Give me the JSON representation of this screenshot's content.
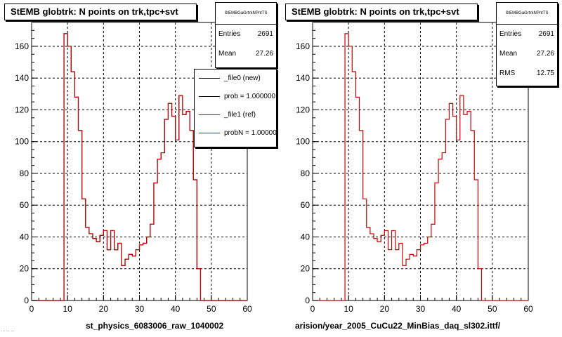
{
  "footer_text": "...  ...  ...",
  "panels": [
    {
      "title": "StEMB globtrk: N points on trk,tpc+svt",
      "stats_header": "StEMBGaGrtrkNPntTS",
      "stats": [
        {
          "label": "Entries",
          "value": "2691"
        },
        {
          "label": "Mean",
          "value": "27.26"
        }
      ],
      "xtitle": "st_physics_6083006_raw_1040002",
      "legend": [
        {
          "label": "_file0 (new)",
          "color": "#000000"
        },
        {
          "label": "prob = 1.000000",
          "color": "#000000"
        },
        {
          "label": "_file1 (ref)",
          "color": "#cc0000"
        },
        {
          "label": "probN = 1.000000",
          "color": "#cc0000"
        }
      ]
    },
    {
      "title": "StEMB globtrk: N points on trk,tpc+svt",
      "stats_header": "StEMBGaGrtrkNPntTS",
      "stats": [
        {
          "label": "Entries",
          "value": "2691"
        },
        {
          "label": "Mean",
          "value": "27.26"
        },
        {
          "label": "RMS",
          "value": "12.75"
        }
      ],
      "xtitle": "arision/year_2005_CuCu22_MinBias_daq_sl302.ittf/",
      "legend": []
    }
  ],
  "chart_data": [
    {
      "type": "bar",
      "title": "StEMB globtrk: N points on trk,tpc+svt",
      "xlabel": "st_physics_6083006_raw_1040002",
      "ylabel": "",
      "xlim": [
        0,
        60
      ],
      "ylim": [
        0,
        175
      ],
      "xticks": [
        0,
        10,
        20,
        30,
        40,
        50,
        60
      ],
      "yticks": [
        0,
        20,
        40,
        60,
        80,
        100,
        120,
        140,
        160
      ],
      "grid": true,
      "bin_width": 1,
      "x": [
        9,
        10,
        11,
        12,
        13,
        14,
        15,
        16,
        17,
        18,
        19,
        20,
        21,
        22,
        23,
        24,
        25,
        26,
        27,
        28,
        29,
        30,
        31,
        32,
        33,
        34,
        35,
        36,
        37,
        38,
        39,
        40,
        41,
        42,
        43,
        44,
        45,
        46,
        47
      ],
      "series": [
        {
          "name": "_file0 (new)",
          "color": "#000000",
          "values": [
            168,
            160,
            144,
            128,
            107,
            64,
            46,
            42,
            39,
            37,
            41,
            44,
            32,
            44,
            32,
            36,
            22,
            26,
            29,
            28,
            32,
            35,
            36,
            40,
            48,
            74,
            89,
            93,
            114,
            124,
            116,
            101,
            129,
            117,
            119,
            107,
            76,
            20,
            0
          ]
        },
        {
          "name": "_file1 (ref)",
          "color": "#cc0000",
          "values": [
            168,
            160,
            144,
            128,
            107,
            64,
            46,
            42,
            39,
            37,
            41,
            44,
            32,
            44,
            32,
            36,
            22,
            26,
            29,
            28,
            32,
            35,
            36,
            40,
            48,
            74,
            89,
            93,
            114,
            124,
            116,
            101,
            129,
            117,
            119,
            107,
            76,
            20,
            0
          ]
        }
      ]
    },
    {
      "type": "bar",
      "title": "StEMB globtrk: N points on trk,tpc+svt",
      "xlabel": "arision/year_2005_CuCu22_MinBias_daq_sl302.ittf/",
      "ylabel": "",
      "xlim": [
        0,
        60
      ],
      "ylim": [
        0,
        175
      ],
      "xticks": [
        0,
        10,
        20,
        30,
        40,
        50,
        60
      ],
      "yticks": [
        0,
        20,
        40,
        60,
        80,
        100,
        120,
        140,
        160
      ],
      "grid": true,
      "bin_width": 1,
      "x": [
        9,
        10,
        11,
        12,
        13,
        14,
        15,
        16,
        17,
        18,
        19,
        20,
        21,
        22,
        23,
        24,
        25,
        26,
        27,
        28,
        29,
        30,
        31,
        32,
        33,
        34,
        35,
        36,
        37,
        38,
        39,
        40,
        41,
        42,
        43,
        44,
        45,
        46,
        47
      ],
      "series": [
        {
          "name": "",
          "color": "#cc0000",
          "values": [
            168,
            160,
            144,
            128,
            107,
            64,
            46,
            42,
            39,
            37,
            41,
            44,
            32,
            44,
            32,
            36,
            22,
            26,
            29,
            28,
            32,
            35,
            36,
            40,
            48,
            74,
            89,
            93,
            114,
            124,
            116,
            101,
            129,
            117,
            119,
            107,
            76,
            20,
            0
          ]
        }
      ]
    }
  ]
}
